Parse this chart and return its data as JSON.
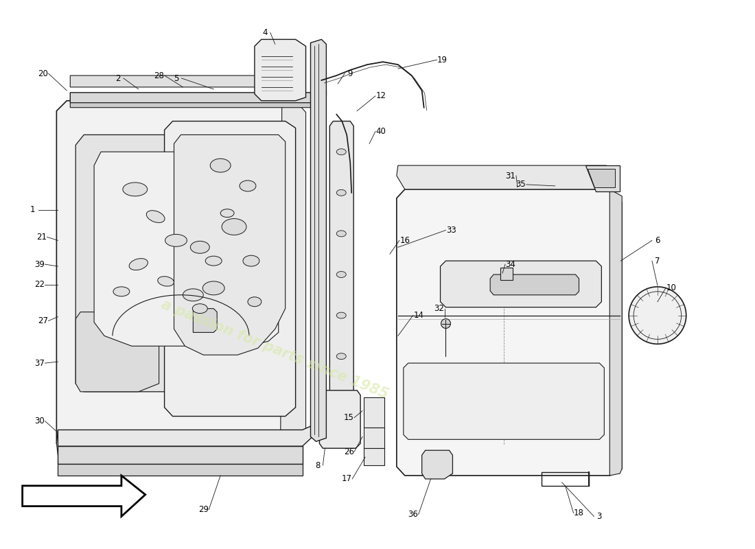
{
  "background_color": "#ffffff",
  "line_color": "#1a1a1a",
  "fill_light": "#f5f5f5",
  "fill_mid": "#ebebeb",
  "fill_dark": "#d8d8d8",
  "watermark_text": "a passion for parts since 1985",
  "watermark_color": "#d4e8a0",
  "watermark_alpha": 0.55,
  "fig_width": 11.0,
  "fig_height": 8.0,
  "label_fontsize": 8.5,
  "label_color": "#000000"
}
